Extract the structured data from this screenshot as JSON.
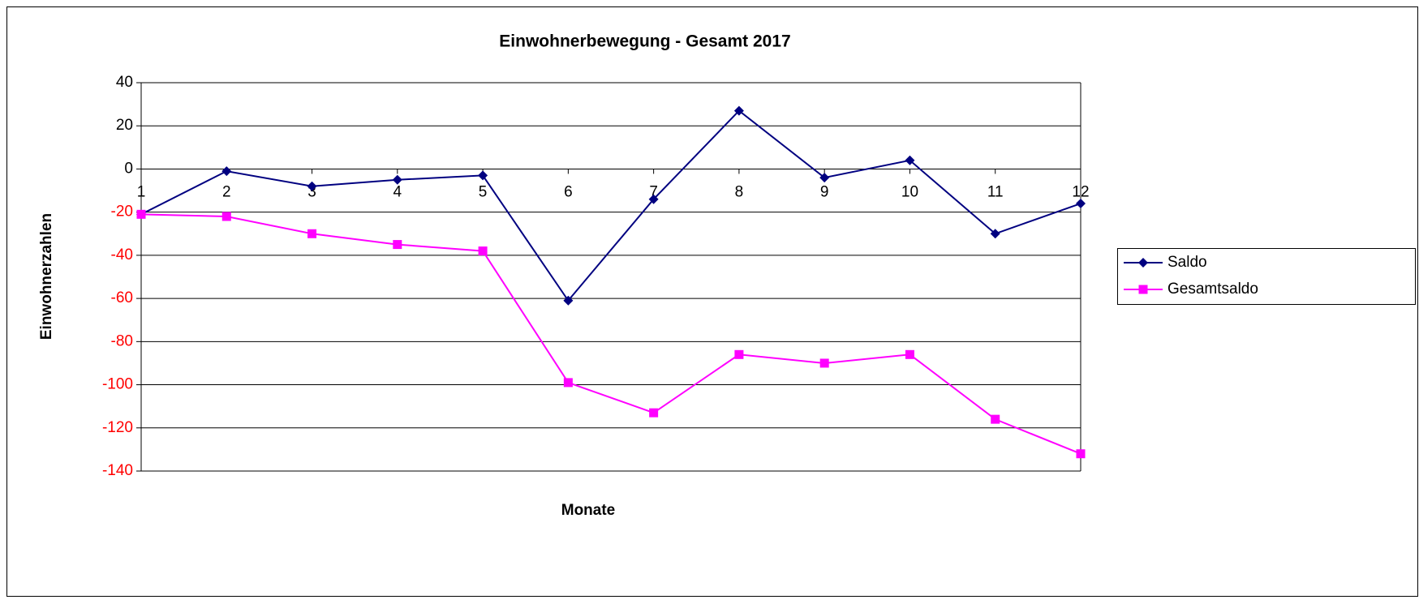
{
  "chart_data": {
    "type": "line",
    "title": "Einwohnerbewegung - Gesamt 2017",
    "x_label": "Monate",
    "y_label": "Einwohnerzahlen",
    "categories": [
      "1",
      "2",
      "3",
      "4",
      "5",
      "6",
      "7",
      "8",
      "9",
      "10",
      "11",
      "12"
    ],
    "series": [
      {
        "name": "Saldo",
        "color": "#000080",
        "marker": "diamond",
        "values": [
          -21,
          -1,
          -8,
          -5,
          -3,
          -61,
          -14,
          27,
          -4,
          4,
          -30,
          -16
        ]
      },
      {
        "name": "Gesamtsaldo",
        "color": "#ff00ff",
        "marker": "square",
        "values": [
          -21,
          -22,
          -30,
          -35,
          -38,
          -99,
          -113,
          -86,
          -90,
          -86,
          -116,
          -132
        ]
      }
    ],
    "ylim": [
      -140,
      40
    ],
    "yticks": [
      -140,
      -120,
      -100,
      -80,
      -60,
      -40,
      -20,
      0,
      20,
      40
    ],
    "negative_tick_color": "#ff0000",
    "grid": true,
    "legend": "right"
  }
}
